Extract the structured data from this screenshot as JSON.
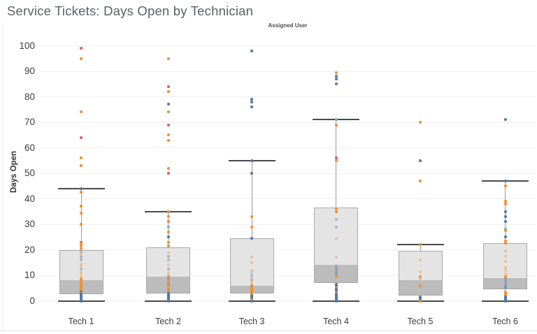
{
  "chart_data": {
    "type": "boxplot",
    "title": "Service Tickets: Days Open by Technician",
    "group_label": "Assigned User",
    "ylabel": "Days Open",
    "ylim": [
      0,
      100
    ],
    "yticks": [
      0,
      10,
      20,
      30,
      40,
      50,
      60,
      70,
      80,
      90,
      100
    ],
    "categories": [
      "Tech 1",
      "Tech 2",
      "Tech 3",
      "Tech 4",
      "Tech 5",
      "Tech 6"
    ],
    "grid": "horizontal",
    "legend": "none",
    "point_colors": {
      "blue": "#4e79a7",
      "orange": "#f28e2b",
      "red": "#e15759",
      "teal": "#76b7b2"
    },
    "colors": {
      "gridline": "#f0f0f0",
      "box_border": "#a9a9a9",
      "box_fill_upper": "#e4e4e4",
      "box_fill_lower": "#bcbcbc",
      "whisker": "#9b9b9b",
      "whisker_cap": "#4a4a4a"
    },
    "series": [
      {
        "name": "Tech 1",
        "whisker_low": 0,
        "q1": 2.5,
        "median": 8,
        "q3": 20,
        "whisker_high": 44,
        "points": [
          [
            99,
            "red",
            0
          ],
          [
            95,
            "orange",
            0
          ],
          [
            74,
            "orange",
            0
          ],
          [
            64,
            "red",
            0
          ],
          [
            56,
            "orange",
            0
          ],
          [
            53,
            "orange",
            0
          ],
          [
            44,
            "blue",
            0
          ],
          [
            42.5,
            "orange",
            0
          ],
          [
            37,
            "orange",
            0
          ],
          [
            34.5,
            "orange",
            0
          ],
          [
            30,
            "orange",
            0
          ],
          [
            23,
            "blue",
            0
          ],
          [
            22.5,
            "orange",
            0
          ],
          [
            21.5,
            "orange",
            0
          ],
          [
            20.5,
            "orange",
            0
          ],
          [
            19,
            "blue",
            1
          ],
          [
            18,
            "orange",
            1
          ],
          [
            17,
            "blue",
            1
          ],
          [
            16,
            "blue",
            1
          ],
          [
            14.5,
            "orange",
            1
          ],
          [
            13.5,
            "orange",
            1
          ],
          [
            12.5,
            "blue",
            1
          ],
          [
            11.5,
            "orange",
            1
          ],
          [
            10.5,
            "orange",
            1
          ],
          [
            9.5,
            "orange",
            1
          ],
          [
            8.5,
            "orange",
            0
          ],
          [
            8,
            "orange",
            1
          ],
          [
            7.5,
            "orange",
            0
          ],
          [
            7,
            "orange",
            1
          ],
          [
            6.5,
            "orange",
            0
          ],
          [
            6,
            "orange",
            1
          ],
          [
            5.5,
            "orange",
            0
          ],
          [
            5,
            "orange",
            1
          ],
          [
            4.5,
            "orange",
            0
          ],
          [
            4,
            "orange",
            0
          ],
          [
            3.5,
            "blue",
            0
          ],
          [
            3,
            "orange",
            0
          ],
          [
            2.5,
            "blue",
            0
          ],
          [
            2,
            "blue",
            0
          ],
          [
            1.5,
            "blue",
            0
          ],
          [
            1,
            "blue",
            0
          ],
          [
            0.5,
            "blue",
            0
          ],
          [
            0,
            "blue",
            0
          ]
        ]
      },
      {
        "name": "Tech 2",
        "whisker_low": 0,
        "q1": 3,
        "median": 9.5,
        "q3": 21,
        "whisker_high": 35,
        "points": [
          [
            95,
            "orange",
            0
          ],
          [
            84,
            "red",
            0
          ],
          [
            82,
            "orange",
            0
          ],
          [
            77,
            "blue",
            0
          ],
          [
            74,
            "orange",
            0
          ],
          [
            69,
            "red",
            0
          ],
          [
            65,
            "orange",
            0
          ],
          [
            63,
            "orange",
            0
          ],
          [
            52,
            "orange",
            0
          ],
          [
            50,
            "red",
            0
          ],
          [
            35,
            "orange",
            0
          ],
          [
            33,
            "orange",
            0
          ],
          [
            31,
            "orange",
            0
          ],
          [
            29,
            "teal",
            0
          ],
          [
            27,
            "orange",
            0
          ],
          [
            25,
            "blue",
            0
          ],
          [
            23,
            "orange",
            0
          ],
          [
            21.5,
            "orange",
            0
          ],
          [
            19,
            "orange",
            1
          ],
          [
            17.5,
            "blue",
            1
          ],
          [
            16,
            "blue",
            1
          ],
          [
            14,
            "orange",
            1
          ],
          [
            12.5,
            "blue",
            1
          ],
          [
            11,
            "orange",
            1
          ],
          [
            10,
            "orange",
            1
          ],
          [
            9.5,
            "orange",
            0
          ],
          [
            8.5,
            "blue",
            1
          ],
          [
            7.5,
            "orange",
            0
          ],
          [
            6.5,
            "blue",
            1
          ],
          [
            6,
            "orange",
            0
          ],
          [
            5,
            "orange",
            1
          ],
          [
            4.5,
            "orange",
            0
          ],
          [
            4,
            "orange",
            0
          ],
          [
            3.5,
            "orange",
            0
          ],
          [
            3,
            "blue",
            0
          ],
          [
            2.5,
            "blue",
            0
          ],
          [
            2,
            "blue",
            0
          ],
          [
            1.5,
            "blue",
            0
          ],
          [
            1,
            "blue",
            0
          ],
          [
            0.5,
            "blue",
            0
          ],
          [
            0,
            "blue",
            0
          ]
        ]
      },
      {
        "name": "Tech 3",
        "whisker_low": 0,
        "q1": 3,
        "median": 6,
        "q3": 24.5,
        "whisker_high": 55,
        "points": [
          [
            98,
            "blue",
            0
          ],
          [
            79,
            "blue",
            0
          ],
          [
            78,
            "blue",
            0
          ],
          [
            76,
            "blue",
            0
          ],
          [
            55,
            "blue",
            0
          ],
          [
            50,
            "blue",
            0
          ],
          [
            33,
            "orange",
            0
          ],
          [
            29,
            "orange",
            0
          ],
          [
            24.5,
            "blue",
            0
          ],
          [
            17,
            "orange",
            1
          ],
          [
            15,
            "orange",
            1
          ],
          [
            12,
            "orange",
            1
          ],
          [
            11,
            "teal",
            1
          ],
          [
            10,
            "blue",
            1
          ],
          [
            9,
            "orange",
            1
          ],
          [
            8,
            "blue",
            1
          ],
          [
            7,
            "orange",
            1
          ],
          [
            6,
            "orange",
            0
          ],
          [
            5.5,
            "blue",
            1
          ],
          [
            5,
            "orange",
            0
          ],
          [
            4.5,
            "orange",
            0
          ],
          [
            4,
            "orange",
            0
          ],
          [
            3.5,
            "orange",
            0
          ],
          [
            3,
            "orange",
            0
          ],
          [
            2,
            "blue",
            0
          ],
          [
            1.5,
            "blue",
            0
          ],
          [
            1,
            "blue",
            0
          ],
          [
            0.5,
            "orange",
            0
          ],
          [
            0,
            "blue",
            0
          ]
        ]
      },
      {
        "name": "Tech 4",
        "whisker_low": 0,
        "q1": 7,
        "median": 14,
        "q3": 36.5,
        "whisker_high": 71,
        "points": [
          [
            89.5,
            "orange",
            0
          ],
          [
            88,
            "blue",
            0
          ],
          [
            87,
            "blue",
            0
          ],
          [
            85,
            "blue",
            0
          ],
          [
            71,
            "teal",
            0
          ],
          [
            69,
            "orange",
            0
          ],
          [
            56,
            "red",
            0
          ],
          [
            55,
            "orange",
            0
          ],
          [
            36,
            "orange",
            0
          ],
          [
            35,
            "orange",
            0
          ],
          [
            32,
            "blue",
            1
          ],
          [
            29,
            "blue",
            1
          ],
          [
            24.5,
            "orange",
            1
          ],
          [
            17,
            "orange",
            1
          ],
          [
            13.5,
            "blue",
            1
          ],
          [
            12.5,
            "blue",
            1
          ],
          [
            11.5,
            "blue",
            1
          ],
          [
            10.5,
            "blue",
            1
          ],
          [
            9.5,
            "orange",
            0
          ],
          [
            6.5,
            "blue",
            0
          ],
          [
            6,
            "blue",
            0
          ],
          [
            5.5,
            "blue",
            0
          ],
          [
            5,
            "orange",
            0
          ],
          [
            4.5,
            "blue",
            0
          ],
          [
            4,
            "blue",
            0
          ],
          [
            3,
            "orange",
            0
          ],
          [
            2.5,
            "blue",
            0
          ],
          [
            2,
            "blue",
            0
          ],
          [
            1.5,
            "blue",
            0
          ],
          [
            1,
            "blue",
            0
          ],
          [
            0.5,
            "blue",
            0
          ],
          [
            0,
            "blue",
            0
          ]
        ]
      },
      {
        "name": "Tech 5",
        "whisker_low": 0,
        "q1": 2,
        "median": 8,
        "q3": 19.5,
        "whisker_high": 22,
        "points": [
          [
            70,
            "orange",
            0
          ],
          [
            55,
            "blue",
            0
          ],
          [
            47,
            "orange",
            0
          ],
          [
            22,
            "orange",
            0
          ],
          [
            16,
            "orange",
            1
          ],
          [
            11.5,
            "orange",
            1
          ],
          [
            9.5,
            "orange",
            0
          ],
          [
            8.5,
            "orange",
            1
          ],
          [
            6,
            "orange",
            0
          ],
          [
            1.5,
            "blue",
            0
          ],
          [
            1,
            "blue",
            0
          ],
          [
            0.5,
            "blue",
            0
          ],
          [
            0,
            "orange",
            0
          ]
        ]
      },
      {
        "name": "Tech 6",
        "whisker_low": 0,
        "q1": 4.5,
        "median": 9,
        "q3": 22.5,
        "whisker_high": 47,
        "points": [
          [
            71,
            "blue",
            0
          ],
          [
            47,
            "blue",
            0
          ],
          [
            45,
            "orange",
            0
          ],
          [
            39,
            "orange",
            0
          ],
          [
            38,
            "orange",
            0
          ],
          [
            35,
            "blue",
            0
          ],
          [
            33,
            "blue",
            0
          ],
          [
            31,
            "blue",
            0
          ],
          [
            28,
            "teal",
            0
          ],
          [
            27.5,
            "orange",
            0
          ],
          [
            25,
            "blue",
            0
          ],
          [
            23.5,
            "orange",
            0
          ],
          [
            22.5,
            "orange",
            0
          ],
          [
            19.5,
            "orange",
            1
          ],
          [
            17.5,
            "orange",
            1
          ],
          [
            15.5,
            "orange",
            1
          ],
          [
            13,
            "orange",
            1
          ],
          [
            12,
            "orange",
            1
          ],
          [
            10.5,
            "orange",
            1
          ],
          [
            9.5,
            "orange",
            0
          ],
          [
            8.5,
            "blue",
            1
          ],
          [
            7.5,
            "blue",
            1
          ],
          [
            6.5,
            "blue",
            1
          ],
          [
            5.5,
            "blue",
            1
          ],
          [
            5,
            "blue",
            1
          ],
          [
            3.5,
            "orange",
            0
          ],
          [
            3,
            "orange",
            0
          ],
          [
            2.5,
            "orange",
            0
          ],
          [
            2,
            "orange",
            0
          ],
          [
            1.5,
            "blue",
            0
          ],
          [
            1,
            "blue",
            0
          ],
          [
            0.5,
            "blue",
            0
          ],
          [
            0,
            "blue",
            0
          ]
        ]
      }
    ]
  }
}
